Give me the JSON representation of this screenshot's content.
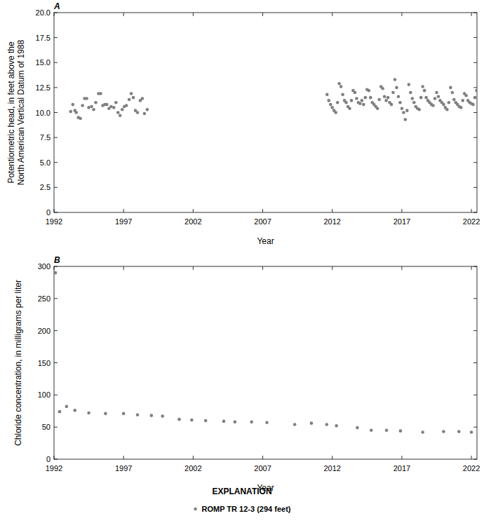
{
  "chart_data": [
    {
      "type": "scatter",
      "title": "A",
      "xlabel": "Year",
      "ylabel": [
        "Potentiometric head, in feet above the",
        "North American Vertical Datum of 1988"
      ],
      "xlim": [
        1992,
        2022.4
      ],
      "xticks": [
        1992,
        1997,
        2002,
        2007,
        2012,
        2017,
        2022
      ],
      "ylim": [
        0,
        20
      ],
      "yticks": [
        0,
        2.5,
        {
          "value": 5,
          "label": "5.0"
        },
        7.5,
        {
          "value": 10,
          "label": "10.0"
        },
        12.5,
        {
          "value": 15,
          "label": "15.0"
        },
        17.5,
        {
          "value": 20,
          "label": "20.0"
        }
      ],
      "grid": false,
      "series": [
        {
          "color": "#808080",
          "marker": "circle",
          "x": [
            1993.2,
            1993.35,
            1993.5,
            1993.6,
            1993.75,
            1993.9,
            1994.05,
            1994.2,
            1994.35,
            1994.5,
            1994.7,
            1994.85,
            1995.0,
            1995.2,
            1995.35,
            1995.5,
            1995.65,
            1995.8,
            1995.95,
            1996.1,
            1996.3,
            1996.45,
            1996.6,
            1996.75,
            1996.9,
            1997.05,
            1997.2,
            1997.4,
            1997.55,
            1997.7,
            1997.85,
            1998.0,
            1998.2,
            1998.35,
            1998.5,
            1998.7,
            2011.625,
            2011.75,
            2011.875,
            2012.0,
            2012.125,
            2012.25,
            2012.375,
            2012.5,
            2012.625,
            2012.75,
            2012.875,
            2013.0,
            2013.125,
            2013.25,
            2013.375,
            2013.5,
            2013.625,
            2013.75,
            2013.875,
            2014.0,
            2014.125,
            2014.25,
            2014.375,
            2014.5,
            2014.625,
            2014.75,
            2014.875,
            2015.0,
            2015.125,
            2015.25,
            2015.375,
            2015.5,
            2015.625,
            2015.75,
            2015.875,
            2016.0,
            2016.125,
            2016.25,
            2016.375,
            2016.5,
            2016.625,
            2016.75,
            2016.875,
            2017.0,
            2017.125,
            2017.25,
            2017.375,
            2017.5,
            2017.625,
            2017.75,
            2017.875,
            2018.0,
            2018.125,
            2018.25,
            2018.375,
            2018.5,
            2018.625,
            2018.75,
            2018.875,
            2019.0,
            2019.125,
            2019.25,
            2019.375,
            2019.5,
            2019.625,
            2019.75,
            2019.875,
            2020.0,
            2020.125,
            2020.25,
            2020.375,
            2020.5,
            2020.625,
            2020.75,
            2020.875,
            2021.0,
            2021.125,
            2021.25,
            2021.375,
            2021.5,
            2021.625,
            2021.75,
            2021.875,
            2022.0,
            2022.125,
            2022.25,
            2022.375
          ],
          "values": [
            10.1,
            10.8,
            10.2,
            10.0,
            9.5,
            9.4,
            10.7,
            11.4,
            11.4,
            10.5,
            10.6,
            10.3,
            11.0,
            11.9,
            11.9,
            10.7,
            10.8,
            10.8,
            10.4,
            10.6,
            10.5,
            11.0,
            10.0,
            9.7,
            10.3,
            10.6,
            10.7,
            11.3,
            11.9,
            11.5,
            10.2,
            10.0,
            11.2,
            11.4,
            9.9,
            10.3,
            11.8,
            11.2,
            10.8,
            10.5,
            10.2,
            10.0,
            11.0,
            12.9,
            12.6,
            11.8,
            11.2,
            11.0,
            10.6,
            10.4,
            11.2,
            12.2,
            12.0,
            11.4,
            11.0,
            10.9,
            11.2,
            10.8,
            11.5,
            12.3,
            12.2,
            11.5,
            11.0,
            10.8,
            10.6,
            10.4,
            11.3,
            12.6,
            12.4,
            11.6,
            11.2,
            11.5,
            11.0,
            10.8,
            12.0,
            13.3,
            12.5,
            11.6,
            11.0,
            10.4,
            10.0,
            9.3,
            10.2,
            12.8,
            12.0,
            11.4,
            11.0,
            10.6,
            10.4,
            10.3,
            11.5,
            12.6,
            12.2,
            11.5,
            11.2,
            11.0,
            10.8,
            10.7,
            11.4,
            12.0,
            11.6,
            11.2,
            11.0,
            10.8,
            10.5,
            10.3,
            11.0,
            12.5,
            12.0,
            11.3,
            11.0,
            10.8,
            10.6,
            10.5,
            11.2,
            11.9,
            11.7,
            11.2,
            11.0,
            10.9,
            10.8,
            11.5,
            12.2
          ]
        }
      ]
    },
    {
      "type": "scatter",
      "title": "B",
      "xlabel": "Year",
      "ylabel": [
        "Chloride concentration, in milligrams per liter"
      ],
      "xlim": [
        1992,
        2022.4
      ],
      "xticks": [
        1992,
        1997,
        2002,
        2007,
        2012,
        2017,
        2022
      ],
      "ylim": [
        0,
        300
      ],
      "yticks": [
        0,
        50,
        100,
        150,
        200,
        250,
        300
      ],
      "grid": false,
      "series": [
        {
          "color": "#808080",
          "marker": "circle",
          "x": [
            1992.1,
            1992.4,
            1992.9,
            1993.5,
            1994.5,
            1995.7,
            1997.0,
            1998.0,
            1999.0,
            1999.8,
            2001.0,
            2001.9,
            2002.9,
            2004.2,
            2005.0,
            2006.2,
            2007.3,
            2009.3,
            2010.5,
            2011.6,
            2012.3,
            2013.8,
            2014.8,
            2015.9,
            2016.9,
            2018.5,
            2020.0,
            2021.1,
            2022.0
          ],
          "values": [
            290,
            74,
            82,
            76,
            72,
            71,
            71,
            69,
            68,
            67,
            62,
            61,
            60,
            59,
            58,
            58,
            57,
            54,
            56,
            54,
            52,
            49,
            45,
            45,
            44,
            42,
            43,
            43,
            42
          ]
        }
      ]
    }
  ],
  "explanation": {
    "title": "EXPLANATION",
    "entries": [
      {
        "name": "ROMP TR 12-3 (294 feet)",
        "color": "#808080",
        "marker": "circle"
      }
    ]
  }
}
